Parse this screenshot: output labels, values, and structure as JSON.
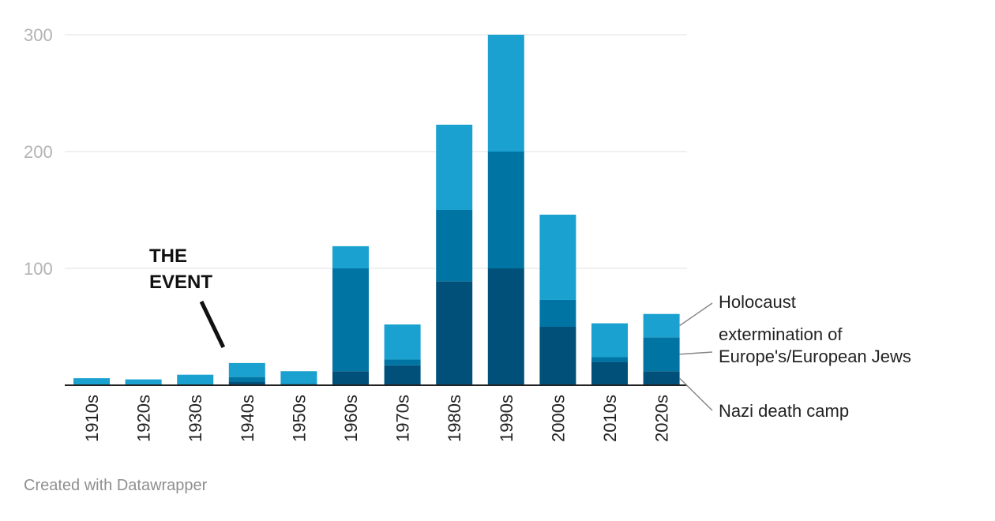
{
  "chart_data": {
    "type": "bar",
    "stacked": true,
    "categories": [
      "1910s",
      "1920s",
      "1930s",
      "1940s",
      "1950s",
      "1960s",
      "1970s",
      "1980s",
      "1990s",
      "2000s",
      "2010s",
      "2020s"
    ],
    "series": [
      {
        "name": "Nazi death camp",
        "color": "#00507a",
        "values": [
          0,
          0,
          0,
          3,
          1,
          12,
          17,
          89,
          100,
          50,
          20,
          12
        ]
      },
      {
        "name": "extermination of Europe's/European Jews",
        "color": "#0075a3",
        "values": [
          0,
          0,
          0,
          4,
          0,
          88,
          5,
          61,
          100,
          23,
          4,
          29
        ]
      },
      {
        "name": "Holocaust",
        "color": "#1aa1cf",
        "values": [
          6,
          5,
          9,
          12,
          11,
          19,
          30,
          73,
          100,
          73,
          29,
          20
        ]
      }
    ],
    "ylim": [
      0,
      300
    ],
    "yticks": [
      100,
      200,
      300
    ],
    "grid": true,
    "legend_placement": "right, inline labels",
    "annotation": {
      "lines": [
        "THE",
        "EVENT"
      ],
      "target_category": "1940s"
    },
    "xlabel": "",
    "ylabel": ""
  },
  "footer": {
    "credit": "Created with Datawrapper"
  }
}
